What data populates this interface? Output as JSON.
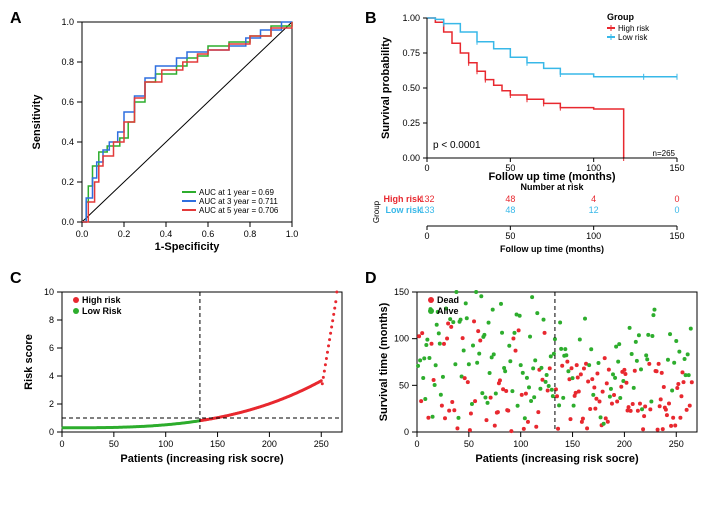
{
  "panels": {
    "A": {
      "label": "A"
    },
    "B": {
      "label": "B"
    },
    "C": {
      "label": "C"
    },
    "D": {
      "label": "D"
    }
  },
  "roc": {
    "type": "line",
    "xlabel": "1-Specificity",
    "ylabel": "Sensitivity",
    "xlim": [
      0,
      1
    ],
    "ylim": [
      0,
      1
    ],
    "xticks": [
      0.0,
      0.2,
      0.4,
      0.6,
      0.8,
      1.0
    ],
    "yticks": [
      0.0,
      0.2,
      0.4,
      0.6,
      0.8,
      1.0
    ],
    "diagonal_color": "#000000",
    "legend_title_none": true,
    "curves": [
      {
        "label": "AUC at 1 year = 0.69",
        "color": "#2dad2d",
        "pts": [
          [
            0,
            0
          ],
          [
            0.02,
            0.1
          ],
          [
            0.03,
            0.18
          ],
          [
            0.05,
            0.28
          ],
          [
            0.08,
            0.35
          ],
          [
            0.12,
            0.38
          ],
          [
            0.18,
            0.42
          ],
          [
            0.22,
            0.5
          ],
          [
            0.25,
            0.6
          ],
          [
            0.3,
            0.7
          ],
          [
            0.35,
            0.74
          ],
          [
            0.45,
            0.78
          ],
          [
            0.5,
            0.82
          ],
          [
            0.55,
            0.83
          ],
          [
            0.6,
            0.88
          ],
          [
            0.7,
            0.9
          ],
          [
            0.8,
            0.93
          ],
          [
            0.9,
            0.98
          ],
          [
            1,
            1
          ]
        ]
      },
      {
        "label": "AUC at 3 year = 0.711",
        "color": "#2e6fdf",
        "pts": [
          [
            0,
            0
          ],
          [
            0.02,
            0.12
          ],
          [
            0.05,
            0.22
          ],
          [
            0.07,
            0.3
          ],
          [
            0.1,
            0.36
          ],
          [
            0.13,
            0.4
          ],
          [
            0.17,
            0.45
          ],
          [
            0.2,
            0.55
          ],
          [
            0.25,
            0.63
          ],
          [
            0.3,
            0.72
          ],
          [
            0.35,
            0.78
          ],
          [
            0.45,
            0.82
          ],
          [
            0.5,
            0.85
          ],
          [
            0.6,
            0.86
          ],
          [
            0.7,
            0.88
          ],
          [
            0.78,
            0.92
          ],
          [
            0.85,
            0.96
          ],
          [
            0.95,
            1
          ],
          [
            1,
            1
          ]
        ]
      },
      {
        "label": "AUC at 5 year = 0.706",
        "color": "#e33a3a",
        "pts": [
          [
            0,
            0
          ],
          [
            0.03,
            0.1
          ],
          [
            0.06,
            0.2
          ],
          [
            0.08,
            0.28
          ],
          [
            0.1,
            0.33
          ],
          [
            0.15,
            0.4
          ],
          [
            0.2,
            0.5
          ],
          [
            0.25,
            0.62
          ],
          [
            0.3,
            0.7
          ],
          [
            0.38,
            0.76
          ],
          [
            0.48,
            0.8
          ],
          [
            0.55,
            0.84
          ],
          [
            0.6,
            0.86
          ],
          [
            0.7,
            0.89
          ],
          [
            0.8,
            0.93
          ],
          [
            0.9,
            0.97
          ],
          [
            1,
            1
          ]
        ]
      }
    ]
  },
  "km": {
    "type": "survival",
    "xlabel": "Follow up time (months)",
    "ylabel": "Survival probability",
    "legend_title": "Group",
    "xlim": [
      0,
      150
    ],
    "ylim": [
      0,
      1
    ],
    "xticks": [
      0,
      50,
      100,
      150
    ],
    "yticks": [
      0.0,
      0.25,
      0.5,
      0.75,
      1.0
    ],
    "p_text": "p < 0.0001",
    "n_text": "n=265",
    "groups": [
      {
        "name": "High risk",
        "color": "#e8282f",
        "pts": [
          [
            0,
            1
          ],
          [
            5,
            0.97
          ],
          [
            10,
            0.9
          ],
          [
            15,
            0.82
          ],
          [
            20,
            0.75
          ],
          [
            25,
            0.68
          ],
          [
            30,
            0.62
          ],
          [
            35,
            0.56
          ],
          [
            40,
            0.52
          ],
          [
            45,
            0.48
          ],
          [
            50,
            0.45
          ],
          [
            60,
            0.42
          ],
          [
            70,
            0.39
          ],
          [
            80,
            0.36
          ],
          [
            100,
            0.35
          ],
          [
            118,
            0.35
          ],
          [
            118,
            0
          ]
        ]
      },
      {
        "name": "Low risk",
        "color": "#38b8e8",
        "pts": [
          [
            0,
            1
          ],
          [
            5,
            0.99
          ],
          [
            10,
            0.96
          ],
          [
            20,
            0.9
          ],
          [
            30,
            0.83
          ],
          [
            40,
            0.78
          ],
          [
            50,
            0.72
          ],
          [
            60,
            0.68
          ],
          [
            70,
            0.64
          ],
          [
            80,
            0.6
          ],
          [
            100,
            0.58
          ],
          [
            130,
            0.58
          ],
          [
            150,
            0.58
          ]
        ]
      }
    ],
    "risk_table": {
      "title": "Number at risk",
      "rows": [
        {
          "label": "High risk",
          "color": "#e8282f",
          "values": [
            132,
            48,
            4,
            0
          ]
        },
        {
          "label": "Low risk",
          "color": "#38b8e8",
          "values": [
            133,
            48,
            12,
            0
          ]
        }
      ],
      "xlabel": "Follow up time (months)",
      "ylab": "Group",
      "xticks": [
        0,
        50,
        100,
        150
      ]
    }
  },
  "riskscore": {
    "type": "scatter",
    "xlabel": "Patients (increasing risk socre)",
    "ylabel": "Risk score",
    "xlim": [
      0,
      270
    ],
    "ylim": [
      0,
      10
    ],
    "xticks": [
      0,
      50,
      100,
      150,
      200,
      250
    ],
    "yticks": [
      0,
      2,
      4,
      6,
      8,
      10
    ],
    "cutoff_x": 133,
    "cutoff_y": 1,
    "legend": [
      {
        "label": "High risk",
        "color": "#e8282f"
      },
      {
        "label": "Low Risk",
        "color": "#2dad2d"
      }
    ],
    "marker_radius": 1.5
  },
  "survtime": {
    "type": "scatter",
    "xlabel": "Patients (increasing risk socre)",
    "ylabel": "Survival time (months)",
    "xlim": [
      0,
      270
    ],
    "ylim": [
      0,
      150
    ],
    "xticks": [
      0,
      50,
      100,
      150,
      200,
      250
    ],
    "yticks": [
      0,
      50,
      100,
      150
    ],
    "cutoff_x": 133,
    "legend": [
      {
        "label": "Dead",
        "color": "#e8282f"
      },
      {
        "label": "Alive",
        "color": "#2dad2d"
      }
    ],
    "marker_radius": 2
  }
}
